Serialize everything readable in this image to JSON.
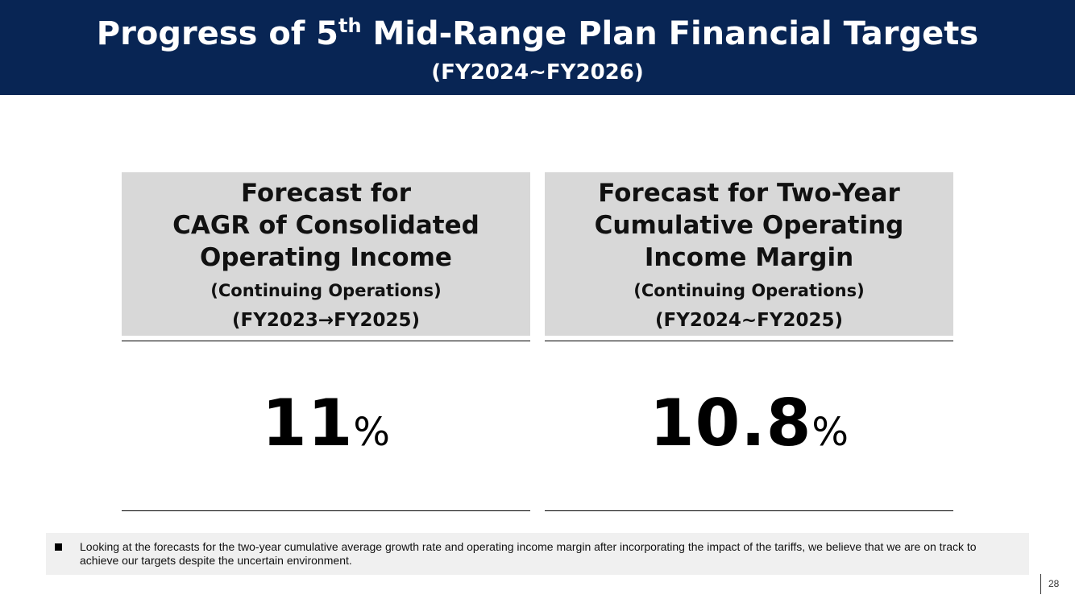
{
  "header": {
    "title_main_1": "Progress of 5",
    "title_sup": "th",
    "title_main_2": " Mid-Range Plan Financial Targets",
    "subtitle": "(FY2024~FY2026)",
    "background_color": "#082554"
  },
  "cards": [
    {
      "title_lines": [
        "Forecast for",
        "CAGR of Consolidated",
        "Operating Income"
      ],
      "note": "(Continuing Operations)",
      "period": "(FY2023→FY2025)",
      "value": "11",
      "unit": "%"
    },
    {
      "title_lines": [
        "Forecast for Two-Year",
        "Cumulative Operating",
        "Income Margin"
      ],
      "note": "(Continuing Operations)",
      "period": "(FY2024~FY2025)",
      "value": "10.8",
      "unit": "%"
    }
  ],
  "footnote": {
    "bullet_icon": "square-bullet-icon",
    "text": "Looking at the forecasts for the two-year cumulative average growth rate and operating income margin after incorporating the impact of the tariffs, we believe that we are on track to achieve our targets despite the uncertain environment."
  },
  "page_number": "28"
}
